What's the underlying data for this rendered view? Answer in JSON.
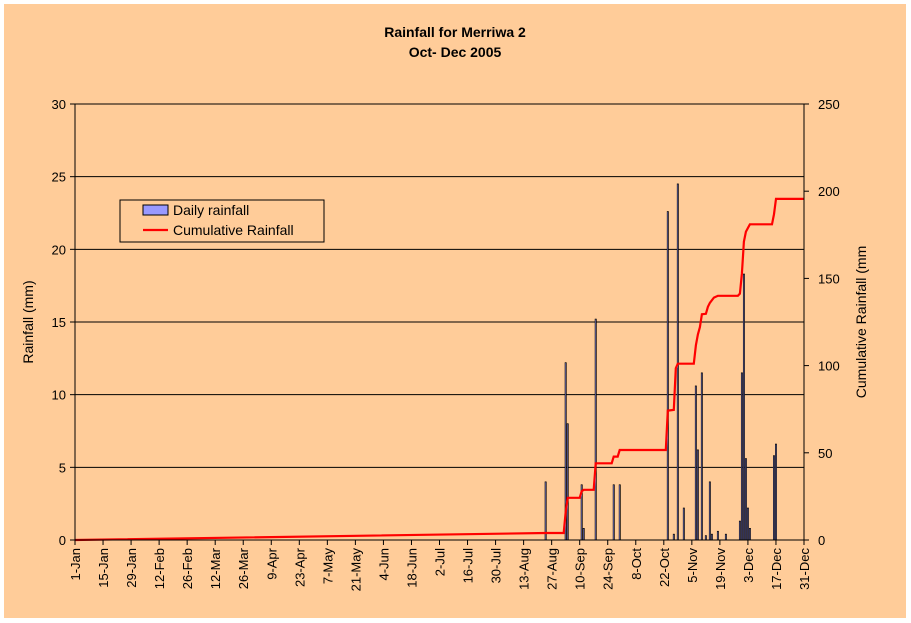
{
  "chart_data": {
    "type": "bar",
    "title": "Rainfall for Merriwa 2",
    "subtitle": "Oct- Dec 2005",
    "ylabel": "Rainfall (mm)",
    "y2label": "Cumulative Rainfall (mm",
    "ylim": [
      0,
      30
    ],
    "y2lim": [
      0,
      250
    ],
    "yticks": [
      0,
      5,
      10,
      15,
      20,
      25,
      30
    ],
    "y2ticks": [
      0,
      50,
      100,
      150,
      200,
      250
    ],
    "xlim": [
      1,
      365
    ],
    "x_tick_days": [
      1,
      15,
      29,
      43,
      57,
      71,
      85,
      99,
      113,
      127,
      141,
      155,
      169,
      183,
      197,
      211,
      225,
      239,
      253,
      267,
      281,
      295,
      309,
      323,
      337,
      351,
      365
    ],
    "x_tick_labels": [
      "1-Jan",
      "15-Jan",
      "29-Jan",
      "12-Feb",
      "26-Feb",
      "12-Mar",
      "26-Mar",
      "9-Apr",
      "23-Apr",
      "7-May",
      "21-May",
      "4-Jun",
      "18-Jun",
      "2-Jul",
      "16-Jul",
      "30-Jul",
      "13-Aug",
      "27-Aug",
      "10-Sep",
      "24-Sep",
      "8-Oct",
      "22-Oct",
      "5-Nov",
      "19-Nov",
      "3-Dec",
      "17-Dec",
      "31-Dec"
    ],
    "grid": true,
    "legend_position": "top-left",
    "colors": {
      "background": "#FFCC99",
      "bar_fill": "#9999FF",
      "bar_stroke": "#000000",
      "line": "#FF0000",
      "grid": "#000000"
    },
    "series": [
      {
        "name": "Daily rainfall",
        "type": "bar",
        "axis": "left",
        "x": [
          236,
          246,
          247,
          254,
          255,
          261,
          270,
          273,
          297,
          302,
          300,
          305,
          311,
          312,
          314,
          316,
          318,
          319,
          322,
          326,
          333,
          334,
          335,
          336,
          337,
          338,
          350,
          351
        ],
        "y": [
          4.0,
          12.2,
          8.0,
          3.8,
          0.8,
          15.2,
          3.8,
          3.8,
          22.6,
          24.5,
          0.4,
          2.2,
          10.6,
          6.2,
          11.5,
          0.3,
          4.0,
          0.4,
          0.6,
          0.4,
          1.3,
          11.5,
          18.3,
          5.6,
          2.2,
          0.8,
          5.8,
          6.6
        ]
      },
      {
        "name": "Cumulative Rainfall",
        "type": "line",
        "axis": "right",
        "x": [
          1,
          236,
          245,
          246,
          247,
          253,
          254,
          255,
          260,
          261,
          269,
          270,
          272,
          273,
          296,
          297,
          300,
          301,
          302,
          304,
          305,
          310,
          311,
          312,
          313,
          314,
          316,
          317,
          318,
          320,
          322,
          332,
          333,
          334,
          335,
          336,
          337,
          338,
          349,
          350,
          351,
          365
        ],
        "y": [
          0,
          4.0,
          4.0,
          16.2,
          24.2,
          24.2,
          28.0,
          28.8,
          28.8,
          44.0,
          44.0,
          47.8,
          47.8,
          51.6,
          51.6,
          74.2,
          74.6,
          98.5,
          101.1,
          101.1,
          101.1,
          101.1,
          111.7,
          117.9,
          122.0,
          129.4,
          129.7,
          133.7,
          136.0,
          139.0,
          140.0,
          140.0,
          141.3,
          152.8,
          171.1,
          176.7,
          178.9,
          181.0,
          181.0,
          186.8,
          195.6,
          195.6
        ]
      }
    ]
  }
}
